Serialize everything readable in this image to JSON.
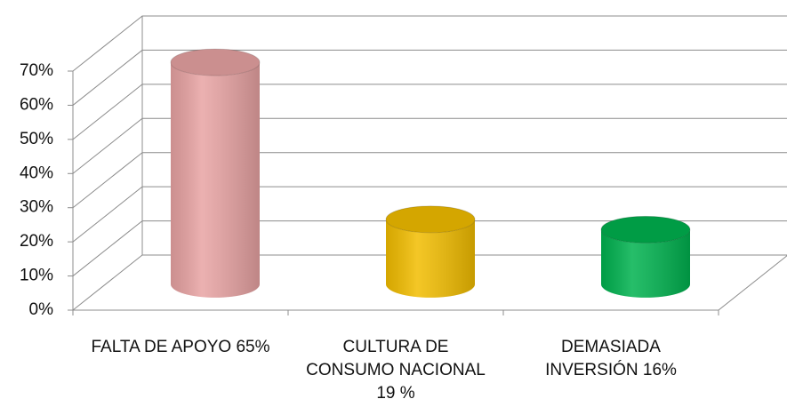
{
  "chart_data": {
    "type": "bar3d",
    "categories": [
      "FALTA DE APOYO 65%",
      "CULTURA DE\nCONSUMO NACIONAL\n19 %",
      "DEMASIADA\nINVERSIÓN 16%"
    ],
    "values": [
      65,
      19,
      16
    ],
    "colors": [
      "#e8a3a3",
      "#f2bd00",
      "#00b24f"
    ],
    "ylim": [
      0,
      70
    ],
    "yticks": [
      {
        "value": 0,
        "label": "0%"
      },
      {
        "value": 10,
        "label": "10%"
      },
      {
        "value": 20,
        "label": "20%"
      },
      {
        "value": 30,
        "label": "30%"
      },
      {
        "value": 40,
        "label": "40%"
      },
      {
        "value": 50,
        "label": "50%"
      },
      {
        "value": 60,
        "label": "60%"
      },
      {
        "value": 70,
        "label": "70%"
      }
    ],
    "grid": true
  }
}
